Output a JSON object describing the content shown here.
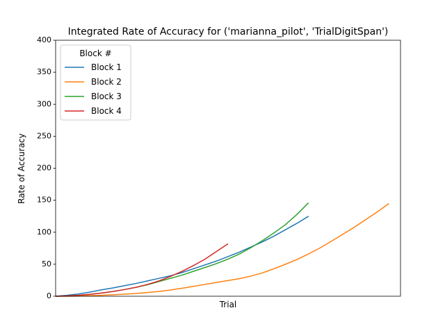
{
  "chart_data": {
    "type": "line",
    "title": "Integrated Rate of Accuracy for ('marianna_pilot', 'TrialDigitSpan')",
    "xlabel": "Trial",
    "ylabel": "Rate of Accuracy",
    "xlim": [
      0,
      30
    ],
    "ylim": [
      0,
      400
    ],
    "yticks": [
      0,
      50,
      100,
      150,
      200,
      250,
      300,
      350,
      400
    ],
    "legend_title": "Block #",
    "legend": "upper left",
    "grid": false,
    "series": [
      {
        "name": "Block 1",
        "color": "#1f77b4",
        "x": [
          0,
          1,
          2,
          3,
          4,
          5,
          6,
          7,
          8,
          9,
          10,
          11,
          12,
          13,
          14,
          15,
          16,
          17,
          18,
          19,
          20,
          21,
          22
        ],
        "values": [
          0,
          1.5,
          3.5,
          6.5,
          10,
          13,
          16.5,
          20,
          24,
          28,
          32,
          37,
          43,
          49,
          55,
          62,
          69,
          77,
          85,
          94,
          104,
          114,
          125
        ]
      },
      {
        "name": "Block 2",
        "color": "#ff7f0e",
        "x": [
          0,
          1,
          2,
          3,
          4,
          5,
          6,
          7,
          8,
          9,
          10,
          11,
          12,
          13,
          14,
          15,
          16,
          17,
          18,
          19,
          20,
          21,
          22,
          23,
          24,
          25,
          26,
          27,
          28,
          29
        ],
        "values": [
          0,
          0,
          0.3,
          0.8,
          1.5,
          2.3,
          3.2,
          4.3,
          5.8,
          7.5,
          9.8,
          12.5,
          15.5,
          18.5,
          21.5,
          24.5,
          27.5,
          31.5,
          36.5,
          43,
          50,
          57.5,
          66,
          75.5,
          86,
          97,
          108,
          120,
          132,
          145
        ]
      },
      {
        "name": "Block 3",
        "color": "#2ca02c",
        "x": [
          0,
          1,
          2,
          3,
          4,
          5,
          6,
          7,
          8,
          9,
          10,
          11,
          12,
          13,
          14,
          15,
          16,
          17,
          18,
          19,
          20,
          21,
          22
        ],
        "values": [
          0,
          0.5,
          1.5,
          3,
          5,
          7.5,
          10.5,
          14,
          18,
          23,
          28,
          33,
          39,
          45,
          51,
          58,
          66,
          76,
          87,
          99,
          112,
          128,
          146
        ]
      },
      {
        "name": "Block 4",
        "color": "#d62728",
        "x": [
          0,
          1,
          2,
          3,
          4,
          5,
          6,
          7,
          8,
          9,
          10,
          11,
          12,
          13,
          14,
          15
        ],
        "values": [
          0,
          0.5,
          1.5,
          3,
          5,
          7.5,
          10.5,
          14,
          18.5,
          24,
          31,
          39,
          48,
          58,
          70,
          82
        ]
      }
    ]
  }
}
